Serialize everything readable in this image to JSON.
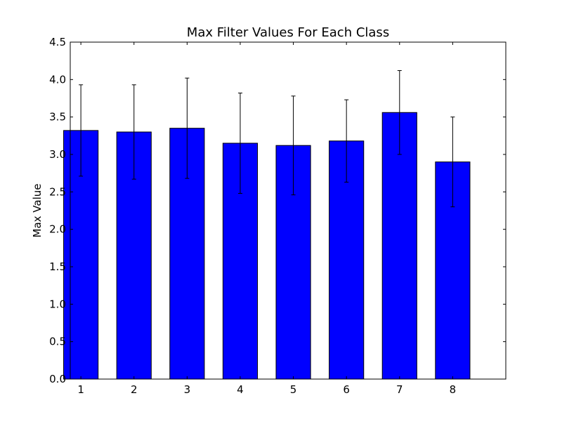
{
  "chart_data": {
    "type": "bar",
    "title": "Max Filter Values For Each Class",
    "xlabel": "",
    "ylabel": "Max Value",
    "categories": [
      "1",
      "2",
      "3",
      "4",
      "5",
      "6",
      "7",
      "8"
    ],
    "values": [
      3.32,
      3.3,
      3.35,
      3.15,
      3.12,
      3.18,
      3.56,
      2.9
    ],
    "error": [
      0.61,
      0.63,
      0.67,
      0.67,
      0.66,
      0.55,
      0.56,
      0.6
    ],
    "xlim": [
      0.8,
      9.0
    ],
    "ylim": [
      0,
      4.5
    ],
    "yticks": [
      "0.0",
      "0.5",
      "1.0",
      "1.5",
      "2.0",
      "2.5",
      "3.0",
      "3.5",
      "4.0",
      "4.5"
    ],
    "bar_color": "#0000ff",
    "grid": false,
    "legend": "none"
  }
}
